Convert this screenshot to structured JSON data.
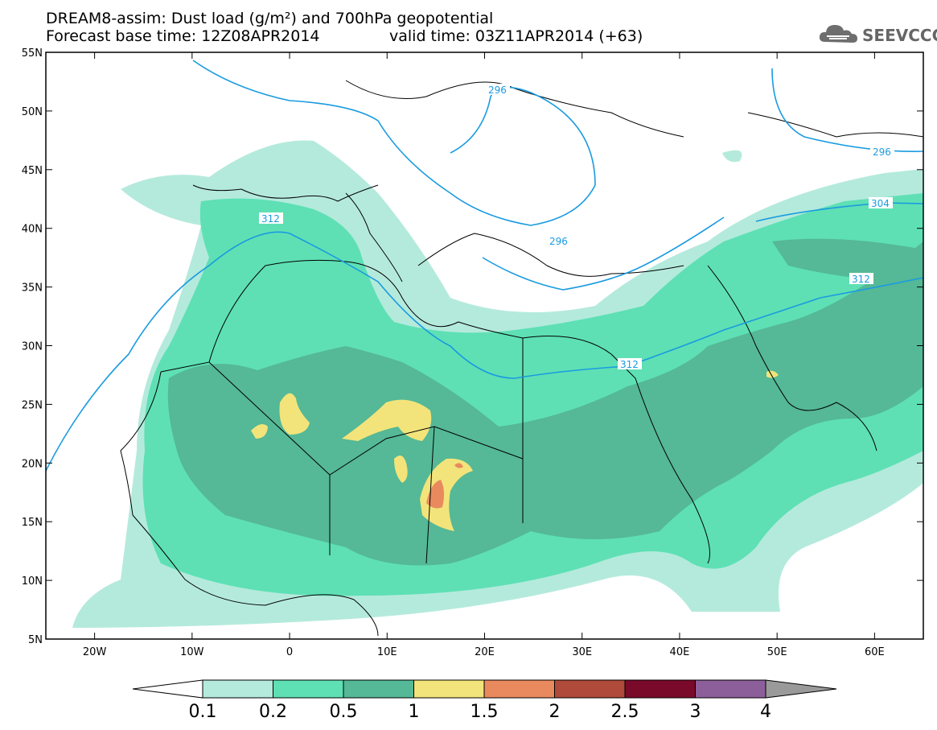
{
  "title": {
    "line1": "DREAM8-assim: Dust load (g/m²) and 700hPa geopotential",
    "line2": "Forecast base time: 12Z08APR2014",
    "valid": "valid time: 03Z11APR2014 (+63)"
  },
  "logo": {
    "text": "SEEVCCC",
    "icon": "cloud-logo-icon"
  },
  "map": {
    "lat_labels": [
      "55N",
      "50N",
      "45N",
      "40N",
      "35N",
      "30N",
      "25N",
      "20N",
      "15N",
      "10N",
      "5N"
    ],
    "lon_labels": [
      "20W",
      "10W",
      "0",
      "10E",
      "20E",
      "30E",
      "40E",
      "50E",
      "60E"
    ],
    "lat_range": [
      5,
      55
    ],
    "lon_range": [
      -25,
      65
    ],
    "contour_labels": [
      "296",
      "296",
      "296",
      "304",
      "312",
      "312",
      "312"
    ]
  },
  "colorbar": {
    "levels": [
      "0.1",
      "0.2",
      "0.5",
      "1",
      "1.5",
      "2",
      "2.5",
      "3",
      "4"
    ],
    "colors": [
      "#b4eadc",
      "#5ee0b4",
      "#55b896",
      "#f2e47a",
      "#e98a5e",
      "#b04a3a",
      "#7a0a2a",
      "#8c5e9a"
    ],
    "over_color": "#9a9a9a",
    "under_color": "#ffffff"
  }
}
